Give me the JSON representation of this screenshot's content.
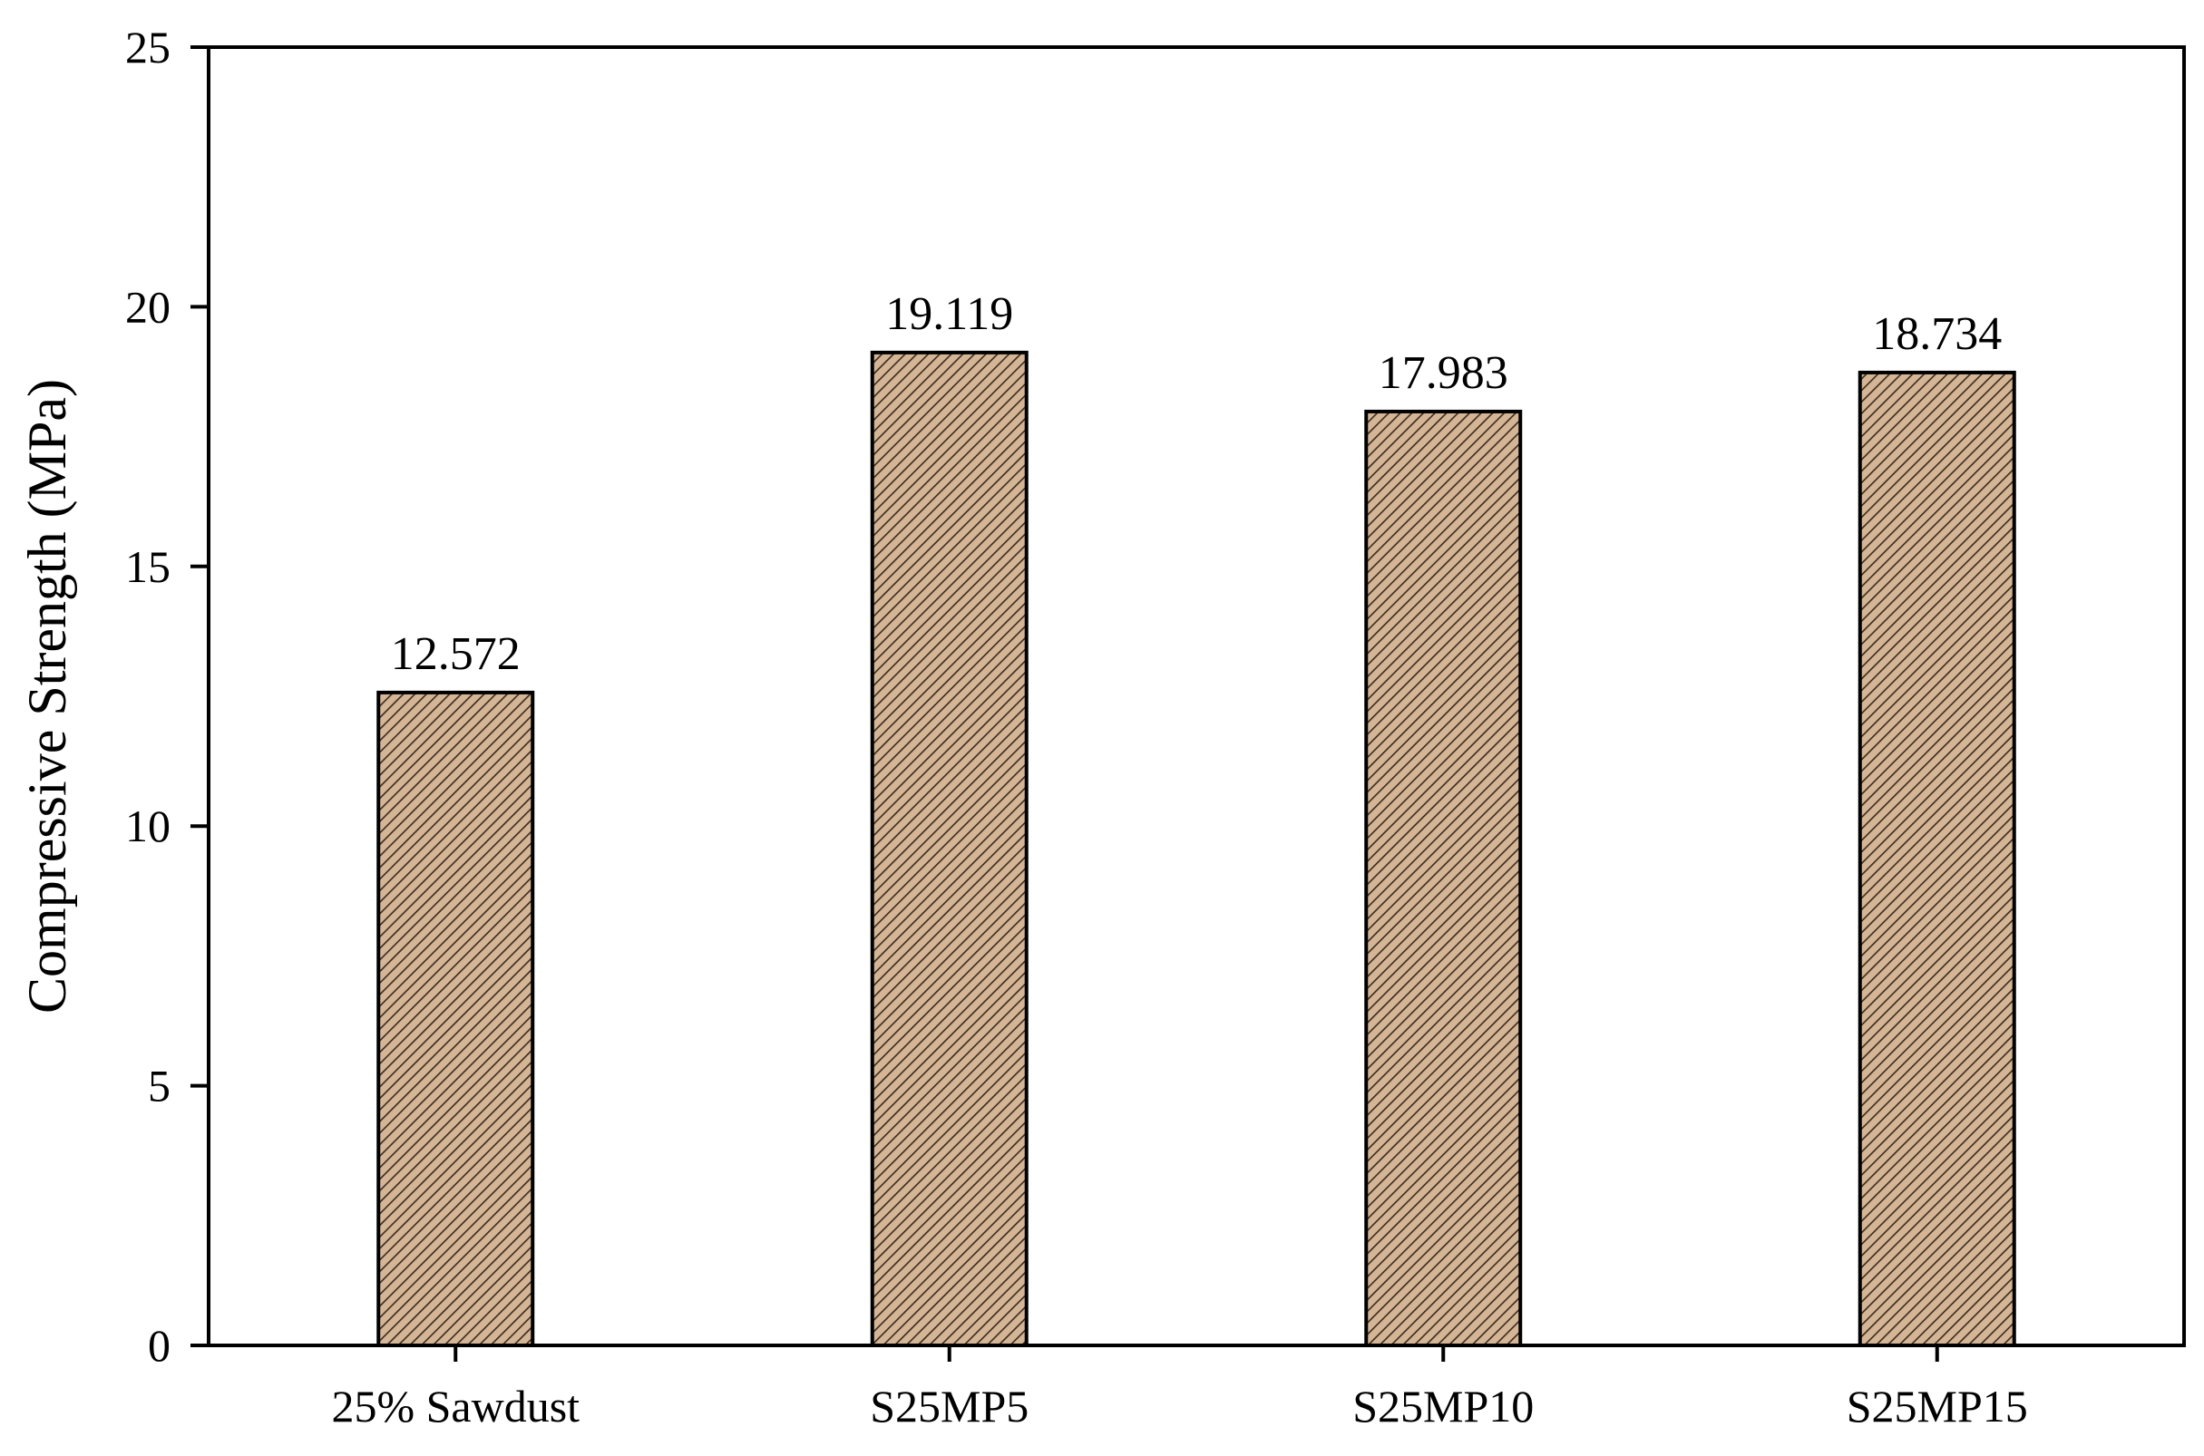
{
  "chart_data": {
    "type": "bar",
    "title": "",
    "xlabel": "",
    "ylabel": "Compressive Strength (MPa)",
    "categories": [
      "25% Sawdust",
      "S25MP5",
      "S25MP10",
      "S25MP15"
    ],
    "values": [
      12.572,
      19.119,
      17.983,
      18.734
    ],
    "data_labels": [
      "12.572",
      "19.119",
      "17.983",
      "18.734"
    ],
    "ylim": [
      0,
      25
    ],
    "yticks": [
      0,
      5,
      10,
      15,
      20,
      25
    ],
    "ytick_labels": [
      "0",
      "5",
      "10",
      "15",
      "20",
      "25"
    ],
    "grid": false,
    "legend": "none",
    "bar_fill_color": "#d4b596",
    "bar_hatch_color": "#3a2a1a",
    "bar_edge_color": "#000000"
  }
}
